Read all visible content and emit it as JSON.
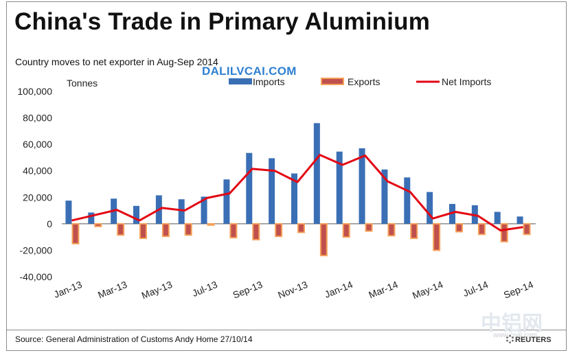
{
  "header": {
    "title": "China's Trade in Primary Aluminium",
    "subtitle": "Country moves to net exporter in Aug-Sep 2014",
    "watermark": "DALILVCAI.COM"
  },
  "footer": {
    "source": "Source: General  Administration of Customs   Andy Home 27/10/14",
    "logo_cn": "中铝网",
    "logo_domain": "www.cnal.com",
    "reuters": "REUTERS"
  },
  "colors": {
    "imports": "#3a6fb5",
    "exports_fill": "#c0504d",
    "exports_border": "#f5a25a",
    "net_imports": "#e30613"
  },
  "chart_data": {
    "type": "bar",
    "title": "China's Trade in Primary Aluminium",
    "ylabel": "Tonnes",
    "ylim": [
      -40000,
      100000
    ],
    "yticks": [
      100000,
      80000,
      60000,
      40000,
      20000,
      0,
      -20000,
      -40000
    ],
    "ytick_labels": [
      "100,000",
      "80,000",
      "60,000",
      "40,000",
      "20,000",
      "0",
      "-20,000",
      "-40,000"
    ],
    "categories": [
      "Jan-13",
      "Feb-13",
      "Mar-13",
      "Apr-13",
      "May-13",
      "Jun-13",
      "Jul-13",
      "Aug-13",
      "Sep-13",
      "Oct-13",
      "Nov-13",
      "Dec-13",
      "Jan-14",
      "Feb-14",
      "Mar-14",
      "Apr-14",
      "May-14",
      "Jun-14",
      "Jul-14",
      "Aug-14",
      "Sep-14"
    ],
    "xtick_labels": [
      "Jan-13",
      "Mar-13",
      "May-13",
      "Jul-13",
      "Sep-13",
      "Nov-13",
      "Jan-14",
      "Mar-14",
      "May-14",
      "Jul-14",
      "Sep-14"
    ],
    "legend_position": "top",
    "series": [
      {
        "name": "Imports",
        "kind": "bar",
        "values": [
          17500,
          8500,
          19000,
          13500,
          21500,
          18500,
          20500,
          33500,
          53500,
          49500,
          38000,
          76000,
          54500,
          57000,
          41000,
          35000,
          24000,
          15000,
          14000,
          9000,
          5500
        ]
      },
      {
        "name": "Exports",
        "kind": "bar",
        "values": [
          -15000,
          -2000,
          -8500,
          -11000,
          -9500,
          -8500,
          -1000,
          -10500,
          -12000,
          -9500,
          -6500,
          -24000,
          -10000,
          -5500,
          -9000,
          -11000,
          -20000,
          -6000,
          -8000,
          -13500,
          -8000
        ]
      },
      {
        "name": "Net Imports",
        "kind": "line",
        "values": [
          2500,
          6500,
          10500,
          2500,
          12000,
          10000,
          19500,
          23000,
          41500,
          40000,
          31500,
          52000,
          44500,
          51500,
          32000,
          24000,
          4000,
          9000,
          6000,
          -5000,
          -2500
        ]
      }
    ]
  }
}
